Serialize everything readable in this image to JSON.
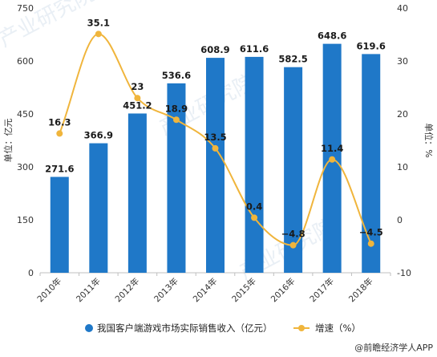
{
  "chart_data": {
    "type": "bar",
    "categories": [
      "2010年",
      "2011年",
      "2012年",
      "2013年",
      "2014年",
      "2015年",
      "2016年",
      "2017年",
      "2018年"
    ],
    "series": [
      {
        "name": "我国客户端游戏市场实际销售收入（亿元）",
        "type": "bar",
        "axis": "left",
        "values": [
          271.6,
          366.9,
          451.2,
          536.6,
          608.9,
          611.6,
          582.5,
          648.6,
          619.6
        ],
        "labels": [
          "271.6",
          "366.9",
          "451.2",
          "536.6",
          "608.9",
          "611.6",
          "582.5",
          "648.6",
          "619.6"
        ]
      },
      {
        "name": "增速（%）",
        "type": "line",
        "axis": "right",
        "smooth": true,
        "values": [
          16.3,
          35.1,
          23,
          18.9,
          13.5,
          0.4,
          -4.8,
          11.4,
          -4.5
        ],
        "labels": [
          "16.3",
          "35.1",
          "23",
          "18.9",
          "13.5",
          "0.4",
          "−4.8",
          "11.4",
          "−4.5"
        ]
      }
    ],
    "ylabel": "单位：亿元",
    "y2label": "单位：%",
    "ylim": [
      0,
      750
    ],
    "yticks": [
      "0",
      "150",
      "300",
      "450",
      "600",
      "750"
    ],
    "y2lim": [
      -10,
      40
    ],
    "y2ticks": [
      "-10",
      "0",
      "10",
      "20",
      "30",
      "40"
    ],
    "grid": false,
    "legend": "bottom"
  },
  "colors": {
    "bar": "#1f78c8",
    "line": "#f0b53c",
    "axis": "#bfbfbf"
  },
  "credit": "@前瞻经济学人APP",
  "watermarks": [
    "产业研究院"
  ]
}
